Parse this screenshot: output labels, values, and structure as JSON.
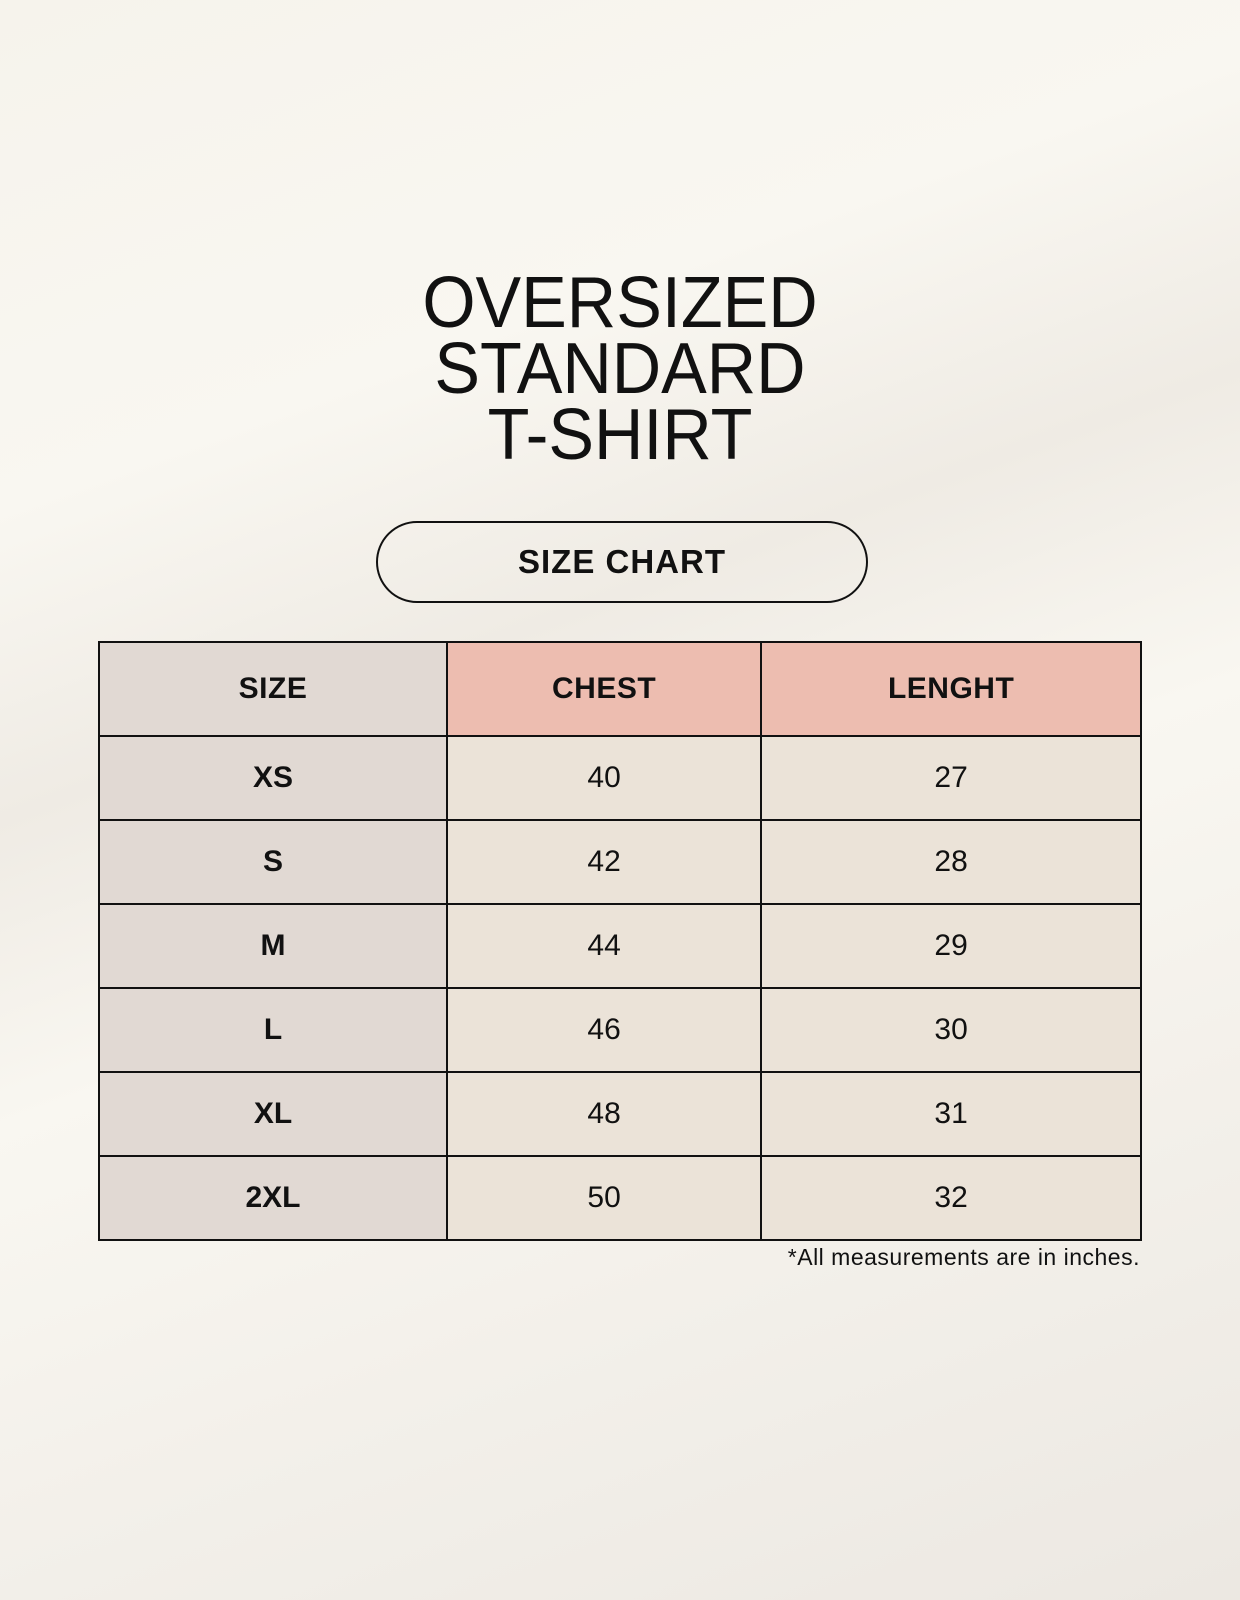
{
  "title": {
    "line1": "OVERSIZED",
    "line2": "STANDARD",
    "line3": "T-SHIRT"
  },
  "badge": "SIZE CHART",
  "table": {
    "headers": [
      "SIZE",
      "CHEST",
      "LENGHT"
    ],
    "rows": [
      [
        "XS",
        "40",
        "27"
      ],
      [
        "S",
        "42",
        "28"
      ],
      [
        "M",
        "44",
        "29"
      ],
      [
        "L",
        "46",
        "30"
      ],
      [
        "XL",
        "48",
        "31"
      ],
      [
        "2XL",
        "50",
        "32"
      ]
    ]
  },
  "footnote": "*All measurements are in inches.",
  "colors": {
    "header_accent": "#edbdb0",
    "size_column": "#e1d9d3",
    "cell": "#ebe3d8"
  }
}
